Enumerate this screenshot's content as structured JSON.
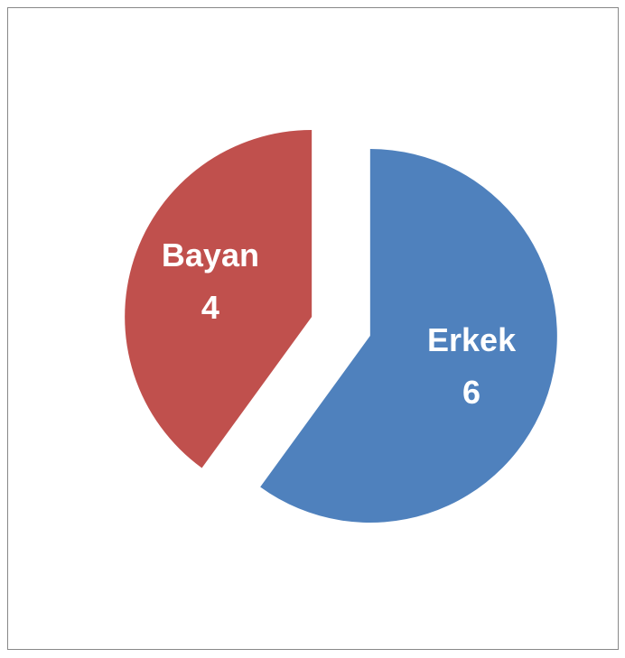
{
  "chart_data": {
    "type": "pie",
    "categories": [
      "Erkek",
      "Bayan"
    ],
    "values": [
      6,
      4
    ],
    "colors": [
      "#4f81bd",
      "#c0504d"
    ],
    "exploded": true
  }
}
